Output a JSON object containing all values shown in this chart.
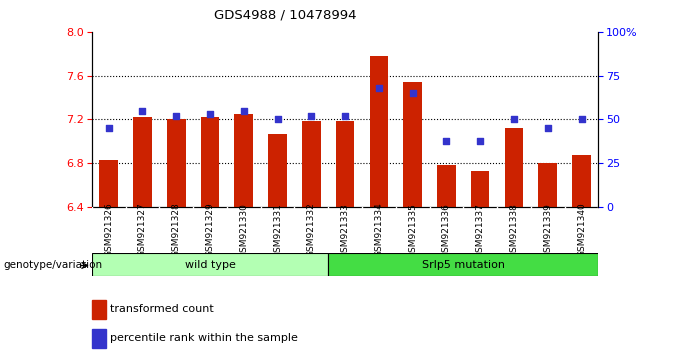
{
  "title": "GDS4988 / 10478994",
  "samples": [
    "GSM921326",
    "GSM921327",
    "GSM921328",
    "GSM921329",
    "GSM921330",
    "GSM921331",
    "GSM921332",
    "GSM921333",
    "GSM921334",
    "GSM921335",
    "GSM921336",
    "GSM921337",
    "GSM921338",
    "GSM921339",
    "GSM921340"
  ],
  "red_values": [
    6.83,
    7.22,
    7.2,
    7.22,
    7.25,
    7.07,
    7.19,
    7.19,
    7.78,
    7.54,
    6.78,
    6.73,
    7.12,
    6.8,
    6.88
  ],
  "blue_pct": [
    45,
    55,
    52,
    53,
    55,
    50,
    52,
    52,
    68,
    65,
    38,
    38,
    50,
    45,
    50
  ],
  "ylim_left": [
    6.4,
    8.0
  ],
  "ylim_right": [
    0,
    100
  ],
  "yticks_left": [
    6.4,
    6.8,
    7.2,
    7.6,
    8.0
  ],
  "yticks_right": [
    0,
    25,
    50,
    75,
    100
  ],
  "ytick_labels_right": [
    "0",
    "25",
    "50",
    "75",
    "100%"
  ],
  "bar_color": "#cc2200",
  "dot_color": "#3333cc",
  "wild_type_count": 7,
  "mutation_count": 8,
  "group1_label": "wild type",
  "group2_label": "Srlp5 mutation",
  "legend_items": [
    "transformed count",
    "percentile rank within the sample"
  ],
  "wild_type_color": "#b3ffb3",
  "mutation_color": "#44dd44",
  "genotype_label": "genotype/variation",
  "tick_bg_color": "#c8c8c8"
}
